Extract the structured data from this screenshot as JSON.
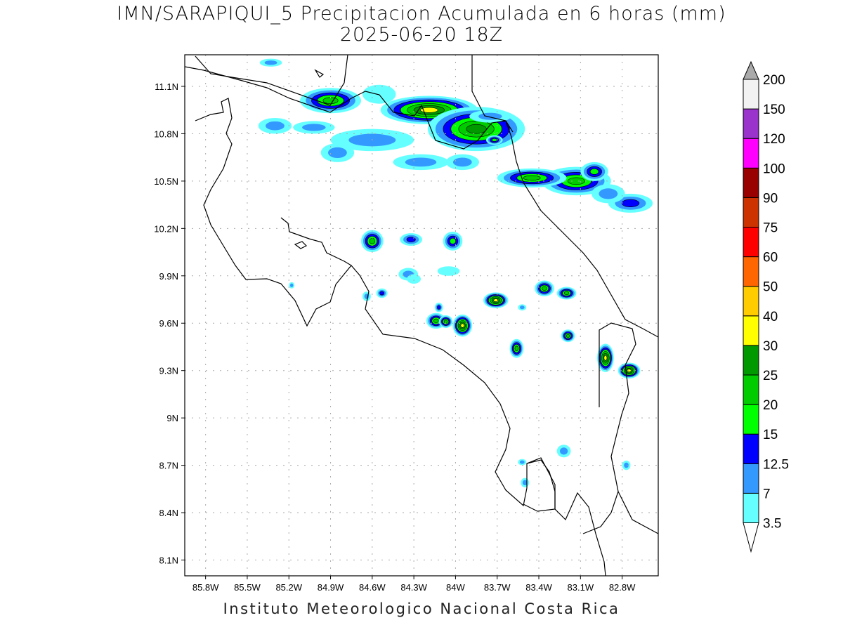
{
  "title": "IMN/SARAPIQUI_5 Precipitacion Acumulada en 6 horas (mm)",
  "subtitle": "2025-06-20 18Z",
  "footer": "Instituto Meteorologico Nacional Costa Rica",
  "chart_data": {
    "type": "heatmap",
    "variable": "6-hour accumulated precipitation (mm)",
    "lon_range": [
      -85.95,
      -82.54
    ],
    "lat_range": [
      8.0,
      11.3
    ],
    "lon_ticks": [
      -85.8,
      -85.5,
      -85.2,
      -84.9,
      -84.6,
      -84.3,
      -84.0,
      -83.7,
      -83.4,
      -83.1,
      -82.8
    ],
    "lon_labels": [
      "85.8W",
      "85.5W",
      "85.2W",
      "84.9W",
      "84.6W",
      "84.3W",
      "84W",
      "83.7W",
      "83.4W",
      "83.1W",
      "82.8W"
    ],
    "lat_ticks": [
      8.1,
      8.4,
      8.7,
      9.0,
      9.3,
      9.6,
      9.9,
      10.2,
      10.5,
      10.8,
      11.1
    ],
    "lat_labels": [
      "8.1N",
      "8.4N",
      "8.7N",
      "9N",
      "9.3N",
      "9.6N",
      "9.9N",
      "10.2N",
      "10.5N",
      "10.8N",
      "11.1N"
    ],
    "grid": true,
    "colorbar": {
      "levels": [
        "3.5",
        "7",
        "12.5",
        "15",
        "20",
        "25",
        "30",
        "40",
        "50",
        "60",
        "75",
        "90",
        "100",
        "120",
        "150",
        "200"
      ],
      "colors": [
        "#66ffff",
        "#3399ff",
        "#0000ff",
        "#00ff00",
        "#00cc00",
        "#009900",
        "#ffff00",
        "#ffcc00",
        "#ff6600",
        "#ff0000",
        "#cc3300",
        "#990000",
        "#ff00ff",
        "#9933cc",
        "#f2f2f2",
        "#aaaaaa"
      ],
      "placement": "right"
    },
    "cells": [
      {
        "lon": -84.9,
        "lat": 11.01,
        "rx": 0.22,
        "ry": 0.08,
        "peak": 20
      },
      {
        "lon": -84.19,
        "lat": 10.95,
        "rx": 0.35,
        "ry": 0.09,
        "peak": 30
      },
      {
        "lon": -83.85,
        "lat": 10.83,
        "rx": 0.35,
        "ry": 0.14,
        "peak": 25
      },
      {
        "lon": -83.72,
        "lat": 10.76,
        "rx": 0.06,
        "ry": 0.03,
        "peak": 15
      },
      {
        "lon": -83.13,
        "lat": 10.5,
        "rx": 0.25,
        "ry": 0.09,
        "peak": 20
      },
      {
        "lon": -83.45,
        "lat": 10.52,
        "rx": 0.25,
        "ry": 0.06,
        "peak": 20
      },
      {
        "lon": -83.0,
        "lat": 10.56,
        "rx": 0.1,
        "ry": 0.06,
        "peak": 15
      },
      {
        "lon": -82.74,
        "lat": 10.36,
        "rx": 0.16,
        "ry": 0.06,
        "peak": 12.5
      },
      {
        "lon": -84.6,
        "lat": 10.12,
        "rx": 0.08,
        "ry": 0.07,
        "peak": 20
      },
      {
        "lon": -84.32,
        "lat": 10.13,
        "rx": 0.08,
        "ry": 0.04,
        "peak": 12.5
      },
      {
        "lon": -84.02,
        "lat": 10.12,
        "rx": 0.07,
        "ry": 0.06,
        "peak": 15
      },
      {
        "lon": -83.71,
        "lat": 9.745,
        "rx": 0.09,
        "ry": 0.05,
        "peak": 30
      },
      {
        "lon": -83.36,
        "lat": 9.82,
        "rx": 0.07,
        "ry": 0.05,
        "peak": 20
      },
      {
        "lon": -83.2,
        "lat": 9.79,
        "rx": 0.07,
        "ry": 0.04,
        "peak": 20
      },
      {
        "lon": -84.14,
        "lat": 9.615,
        "rx": 0.07,
        "ry": 0.05,
        "peak": 20
      },
      {
        "lon": -84.07,
        "lat": 9.61,
        "rx": 0.05,
        "ry": 0.04,
        "peak": 20
      },
      {
        "lon": -83.95,
        "lat": 9.585,
        "rx": 0.07,
        "ry": 0.07,
        "peak": 30
      },
      {
        "lon": -83.56,
        "lat": 9.44,
        "rx": 0.05,
        "ry": 0.06,
        "peak": 20
      },
      {
        "lon": -83.19,
        "lat": 9.52,
        "rx": 0.05,
        "ry": 0.04,
        "peak": 20
      },
      {
        "lon": -82.92,
        "lat": 9.38,
        "rx": 0.06,
        "ry": 0.09,
        "peak": 30
      },
      {
        "lon": -82.75,
        "lat": 9.3,
        "rx": 0.08,
        "ry": 0.05,
        "peak": 30
      },
      {
        "lon": -84.34,
        "lat": 9.91,
        "rx": 0.07,
        "ry": 0.04,
        "peak": 7
      },
      {
        "lon": -84.53,
        "lat": 9.79,
        "rx": 0.04,
        "ry": 0.03,
        "peak": 12.5
      },
      {
        "lon": -84.64,
        "lat": 9.77,
        "rx": 0.03,
        "ry": 0.03,
        "peak": 7
      },
      {
        "lon": -85.3,
        "lat": 10.85,
        "rx": 0.12,
        "ry": 0.05,
        "peak": 7
      },
      {
        "lon": -85.02,
        "lat": 10.84,
        "rx": 0.15,
        "ry": 0.04,
        "peak": 7
      },
      {
        "lon": -84.6,
        "lat": 10.76,
        "rx": 0.3,
        "ry": 0.07,
        "peak": 7
      },
      {
        "lon": -84.25,
        "lat": 10.62,
        "rx": 0.2,
        "ry": 0.05,
        "peak": 7
      },
      {
        "lon": -83.95,
        "lat": 10.62,
        "rx": 0.12,
        "ry": 0.05,
        "peak": 7
      },
      {
        "lon": -84.85,
        "lat": 10.68,
        "rx": 0.12,
        "ry": 0.06,
        "peak": 7
      },
      {
        "lon": -83.75,
        "lat": 10.91,
        "rx": 0.15,
        "ry": 0.04,
        "peak": 7
      },
      {
        "lon": -85.33,
        "lat": 11.25,
        "rx": 0.08,
        "ry": 0.025,
        "peak": 7
      },
      {
        "lon": -84.55,
        "lat": 11.05,
        "rx": 0.12,
        "ry": 0.06,
        "peak": 3.5
      },
      {
        "lon": -82.9,
        "lat": 10.42,
        "rx": 0.12,
        "ry": 0.06,
        "peak": 7
      },
      {
        "lon": -84.3,
        "lat": 9.88,
        "rx": 0.05,
        "ry": 0.03,
        "peak": 3.5
      },
      {
        "lon": -84.12,
        "lat": 9.7,
        "rx": 0.03,
        "ry": 0.03,
        "peak": 12.5
      },
      {
        "lon": -83.52,
        "lat": 9.7,
        "rx": 0.03,
        "ry": 0.02,
        "peak": 7
      },
      {
        "lon": -83.22,
        "lat": 8.79,
        "rx": 0.05,
        "ry": 0.04,
        "peak": 7
      },
      {
        "lon": -83.5,
        "lat": 8.59,
        "rx": 0.03,
        "ry": 0.03,
        "peak": 7
      },
      {
        "lon": -83.52,
        "lat": 8.72,
        "rx": 0.03,
        "ry": 0.02,
        "peak": 7
      },
      {
        "lon": -82.77,
        "lat": 8.7,
        "rx": 0.03,
        "ry": 0.03,
        "peak": 7
      },
      {
        "lon": -84.05,
        "lat": 9.93,
        "rx": 0.08,
        "ry": 0.03,
        "peak": 3.5
      },
      {
        "lon": -85.18,
        "lat": 9.84,
        "rx": 0.02,
        "ry": 0.02,
        "peak": 7
      }
    ]
  }
}
